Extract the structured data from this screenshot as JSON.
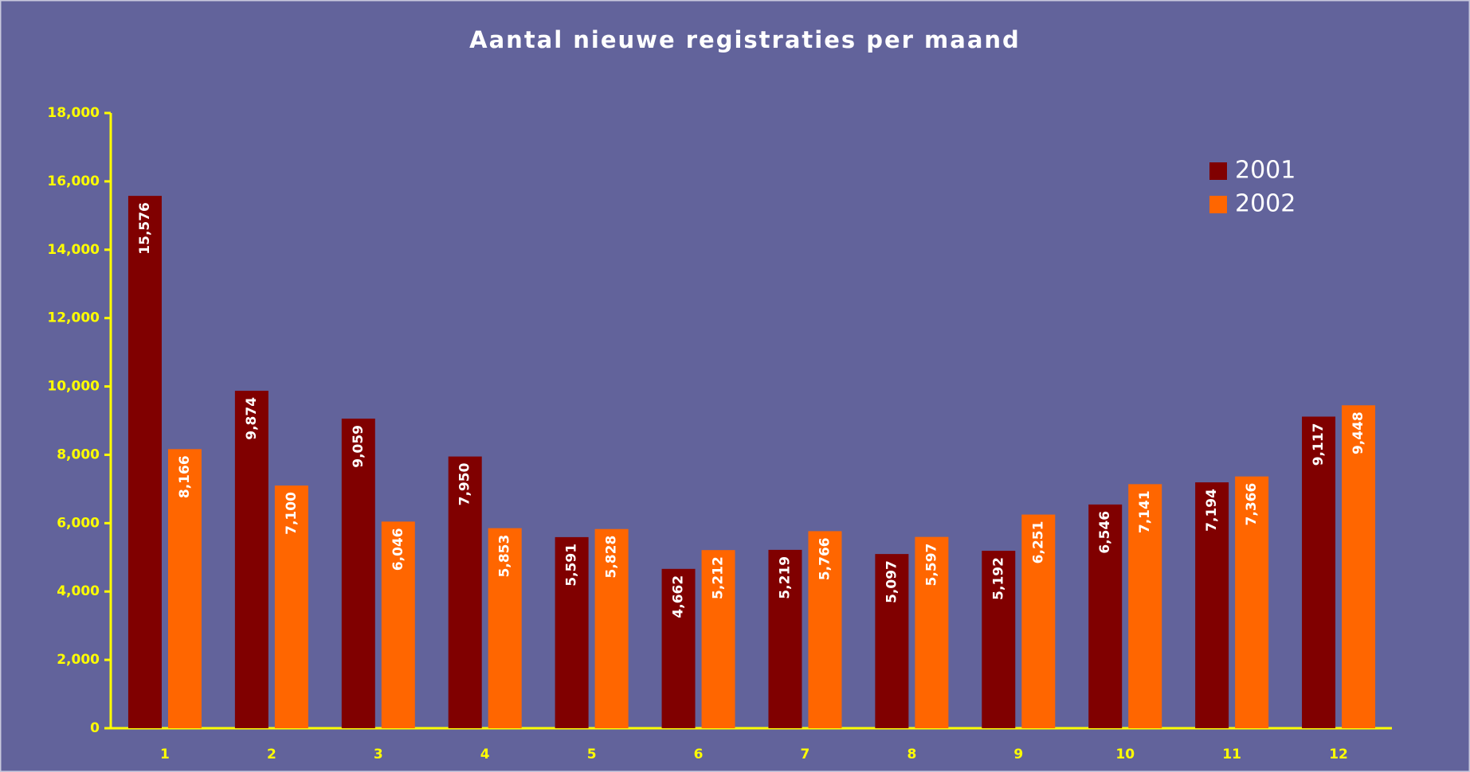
{
  "chart_data": {
    "type": "bar",
    "title": "Aantal nieuwe registraties per maand",
    "categories": [
      "1",
      "2",
      "3",
      "4",
      "5",
      "6",
      "7",
      "8",
      "9",
      "10",
      "11",
      "12"
    ],
    "series": [
      {
        "name": "2001",
        "color": "#800000",
        "values": [
          15576,
          9874,
          9059,
          7950,
          5591,
          4662,
          5219,
          5097,
          5192,
          6546,
          7194,
          9117
        ],
        "value_labels": [
          "15,576",
          "9,874",
          "9,059",
          "7,950",
          "5,591",
          "4,662",
          "5,219",
          "5,097",
          "5,192",
          "6,546",
          "7,194",
          "9,117"
        ]
      },
      {
        "name": "2002",
        "color": "#ff6600",
        "values": [
          8166,
          7100,
          6046,
          5853,
          5828,
          5212,
          5766,
          5597,
          6251,
          7141,
          7366,
          9448
        ],
        "value_labels": [
          "8,166",
          "7,100",
          "6,046",
          "5,853",
          "5,828",
          "5,212",
          "5,766",
          "5,597",
          "6,251",
          "7,141",
          "7,366",
          "9,448"
        ]
      }
    ],
    "ylim": [
      0,
      18000
    ],
    "yticks": [
      0,
      {
        "value": 2000,
        "label": "2,000"
      },
      {
        "value": 4000,
        "label": "4,000"
      },
      {
        "value": 6000,
        "label": "6,000"
      },
      {
        "value": 8000,
        "label": "8,000"
      },
      {
        "value": 10000,
        "label": "10,000"
      },
      {
        "value": 12000,
        "label": "12,000"
      },
      {
        "value": 14000,
        "label": "14,000"
      },
      {
        "value": 16000,
        "label": "16,000"
      },
      {
        "value": 18000,
        "label": "18,000"
      }
    ],
    "grid": false,
    "legend": "top-right"
  }
}
